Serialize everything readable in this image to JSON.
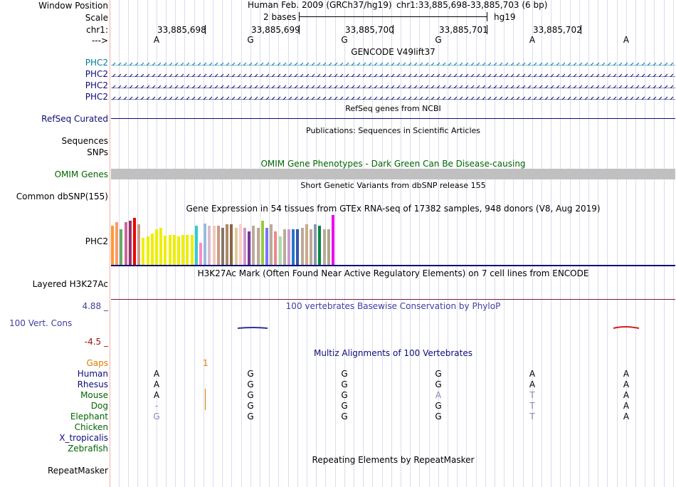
{
  "header": {
    "window_position_label": "Window Position",
    "scale_label": "Scale",
    "chrom_label": "chr1:",
    "strand_label": "--->",
    "assembly": "Human Feb. 2009 (GRCh37/hg19)",
    "position": "chr1:33,885,698-33,885,703 (6 bp)",
    "scale_text": "2 bases",
    "db": "hg19",
    "coords": [
      "33,885,698",
      "33,885,699",
      "33,885,700",
      "33,885,701",
      "33,885,702"
    ]
  },
  "sequence": [
    "A",
    "G",
    "G",
    "G",
    "A",
    "A"
  ],
  "gencode": {
    "title": "GENCODE V49lift37",
    "rows": [
      {
        "label": "PHC2",
        "color": "#007c9c"
      },
      {
        "label": "PHC2",
        "color": "#0c0c78"
      },
      {
        "label": "PHC2",
        "color": "#0c0c78"
      },
      {
        "label": "PHC2",
        "color": "#0c0c78"
      }
    ]
  },
  "refseq": {
    "title": "RefSeq genes from NCBI",
    "label": "RefSeq Curated"
  },
  "publications": {
    "title": "Publications: Sequences in Scientific Articles",
    "label1": "Sequences",
    "label2": "SNPs"
  },
  "omim": {
    "title": "OMIM Gene Phenotypes - Dark Green Can Be Disease-causing",
    "label": "OMIM Genes"
  },
  "dbsnp": {
    "title": "Short Genetic Variants from dbSNP release 155",
    "label": "Common dbSNP(155)"
  },
  "gtex": {
    "title": "Gene Expression in 54 tissues from GTEx RNA-seq of 17382 samples, 948 donors (V8, Aug 2019)",
    "label": "PHC2",
    "bars": [
      {
        "v": 0.55,
        "c": "#ff9933"
      },
      {
        "v": 0.6,
        "c": "#ff9966"
      },
      {
        "v": 0.5,
        "c": "#66aa66"
      },
      {
        "v": 0.6,
        "c": "#cc6699"
      },
      {
        "v": 0.62,
        "c": "#993366"
      },
      {
        "v": 0.66,
        "c": "#ee0000"
      },
      {
        "v": 0.57,
        "c": "#cc9988"
      },
      {
        "v": 0.38,
        "c": "#eeee00"
      },
      {
        "v": 0.4,
        "c": "#eeee00"
      },
      {
        "v": 0.44,
        "c": "#eeee00"
      },
      {
        "v": 0.5,
        "c": "#eeee00"
      },
      {
        "v": 0.52,
        "c": "#eeee00"
      },
      {
        "v": 0.41,
        "c": "#eeee00"
      },
      {
        "v": 0.42,
        "c": "#eeee00"
      },
      {
        "v": 0.42,
        "c": "#eeee00"
      },
      {
        "v": 0.4,
        "c": "#eeee00"
      },
      {
        "v": 0.42,
        "c": "#eeee00"
      },
      {
        "v": 0.42,
        "c": "#eeee00"
      },
      {
        "v": 0.42,
        "c": "#eeee00"
      },
      {
        "v": 0.55,
        "c": "#33cccc"
      },
      {
        "v": 0.31,
        "c": "#ff88cc"
      },
      {
        "v": 0.58,
        "c": "#99bbdd"
      },
      {
        "v": 0.55,
        "c": "#ddbbcc"
      },
      {
        "v": 0.55,
        "c": "#eeccbb"
      },
      {
        "v": 0.55,
        "c": "#cc9988"
      },
      {
        "v": 0.52,
        "c": "#887766"
      },
      {
        "v": 0.57,
        "c": "#aa8866"
      },
      {
        "v": 0.57,
        "c": "#886644"
      },
      {
        "v": 0.52,
        "c": "#ddcc99"
      },
      {
        "v": 0.57,
        "c": "#ffcccc"
      },
      {
        "v": 0.52,
        "c": "#cc99cc"
      },
      {
        "v": 0.47,
        "c": "#773399"
      },
      {
        "v": 0.55,
        "c": "#bbaa99"
      },
      {
        "v": 0.52,
        "c": "#bbaa99"
      },
      {
        "v": 0.62,
        "c": "#99cc33"
      },
      {
        "v": 0.52,
        "c": "#7777ff"
      },
      {
        "v": 0.57,
        "c": "#bbaa99"
      },
      {
        "v": 0.47,
        "c": "#ee8888"
      },
      {
        "v": 0.4,
        "c": "#aaddaa"
      },
      {
        "v": 0.5,
        "c": "#bbaa99"
      },
      {
        "v": 0.5,
        "c": "#cc99cc"
      },
      {
        "v": 0.5,
        "c": "#2277cc"
      },
      {
        "v": 0.5,
        "c": "#3355aa"
      },
      {
        "v": 0.52,
        "c": "#bbaa99"
      },
      {
        "v": 0.57,
        "c": "#ccaa88"
      },
      {
        "v": 0.5,
        "c": "#bbaa99"
      },
      {
        "v": 0.57,
        "c": "#8899aa"
      },
      {
        "v": 0.55,
        "c": "#008844"
      },
      {
        "v": 0.5,
        "c": "#bbaa99"
      },
      {
        "v": 0.5,
        "c": "#aaaa88"
      },
      {
        "v": 0.7,
        "c": "#ee00ee"
      }
    ]
  },
  "h3k27ac": {
    "title": "H3K27Ac Mark (Often Found Near Active Regulatory Elements) on 7 cell lines from ENCODE",
    "label": "Layered H3K27Ac"
  },
  "phylop": {
    "title": "100 vertebrates Basewise Conservation by PhyloP",
    "label": "100 Vert. Cons",
    "max": "4.88 _",
    "min": "-4.5 _"
  },
  "multiz": {
    "title": "Multiz Alignments of 100 Vertebrates",
    "gaps_label": "Gaps",
    "gaps_mark": "1",
    "species": [
      {
        "name": "Human",
        "color": "#0c0c78",
        "bases": [
          "A",
          "G",
          "G",
          "G",
          "A",
          "A"
        ],
        "dim": [
          0,
          0,
          0,
          0,
          0,
          0
        ]
      },
      {
        "name": "Rhesus",
        "color": "#0c0c78",
        "bases": [
          "A",
          "G",
          "G",
          "G",
          "A",
          "A"
        ],
        "dim": [
          0,
          0,
          0,
          0,
          0,
          0
        ]
      },
      {
        "name": "Mouse",
        "color": "#006600",
        "bases": [
          "A",
          "G",
          "G",
          "A",
          "T",
          "A"
        ],
        "dim": [
          0,
          0,
          0,
          1,
          1,
          0
        ]
      },
      {
        "name": "Dog",
        "color": "#006600",
        "bases": [
          "-",
          "G",
          "G",
          "G",
          "T",
          "A"
        ],
        "dim": [
          1,
          0,
          0,
          0,
          1,
          0
        ]
      },
      {
        "name": "Elephant",
        "color": "#006600",
        "bases": [
          "G",
          "G",
          "G",
          "G",
          "T",
          "A"
        ],
        "dim": [
          1,
          0,
          0,
          0,
          1,
          0
        ]
      },
      {
        "name": "Chicken",
        "color": "#006600",
        "bases": [
          "",
          "",
          "",
          "",
          "",
          ""
        ],
        "dim": [
          0,
          0,
          0,
          0,
          0,
          0
        ]
      },
      {
        "name": "X_tropicalis",
        "color": "#0c0c78",
        "bases": [
          "",
          "",
          "",
          "",
          "",
          ""
        ],
        "dim": [
          0,
          0,
          0,
          0,
          0,
          0
        ]
      },
      {
        "name": "Zebrafish",
        "color": "#006600",
        "bases": [
          "",
          "",
          "",
          "",
          "",
          ""
        ],
        "dim": [
          0,
          0,
          0,
          0,
          0,
          0
        ]
      }
    ]
  },
  "repeatmasker": {
    "title": "Repeating Elements by RepeatMasker",
    "label": "RepeatMasker"
  },
  "colors": {
    "gencode": "#007c9c",
    "navy": "#0c0c78",
    "omim": "#c0c0c0",
    "phylop": "#4040a0",
    "gaps": "#e07c00"
  }
}
